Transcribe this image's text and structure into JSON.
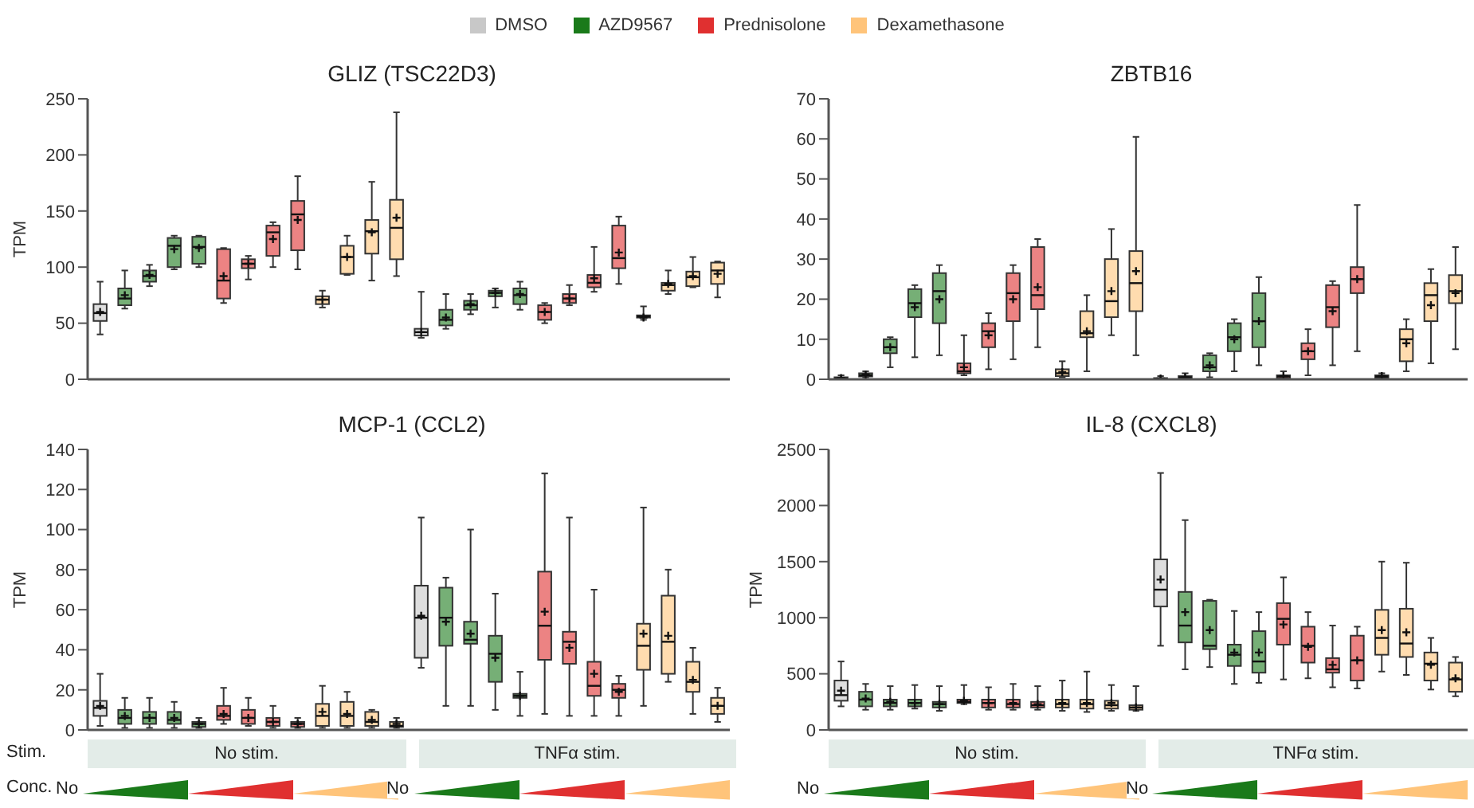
{
  "chart_data": [
    {
      "type": "box",
      "title": "GLIZ (TSC22D3)",
      "ylabel": "TPM",
      "legend": "top",
      "ylim": [
        0,
        250
      ],
      "yticks": [
        0,
        50,
        100,
        150,
        200,
        250
      ],
      "categories": [
        null,
        null,
        null,
        null,
        null,
        null,
        null,
        null,
        null,
        null,
        null,
        null,
        null,
        null,
        null,
        null,
        null,
        null,
        null,
        null,
        null,
        null,
        null,
        null,
        null,
        null
      ],
      "series": [
        {
          "name": "DMSO",
          "color": "#c8c8c8",
          "boxes": [
            {
              "low": 40,
              "q1": 52,
              "median": 59,
              "q3": 67,
              "high": 87,
              "mean": 60
            },
            null,
            null,
            null,
            null,
            null,
            null,
            null,
            null,
            null,
            null,
            null,
            null,
            {
              "low": 37,
              "q1": 39,
              "median": 42,
              "q3": 45,
              "high": 78,
              "mean": 42
            },
            null,
            null,
            null,
            null,
            null,
            null,
            null,
            null,
            null,
            null,
            null,
            null
          ]
        },
        {
          "name": "AZD9567",
          "color": "#1a7a1a",
          "boxes": [
            null,
            {
              "low": 63,
              "q1": 66,
              "median": 72,
              "q3": 81,
              "high": 97,
              "mean": 75
            },
            {
              "low": 83,
              "q1": 87,
              "median": 92,
              "q3": 97,
              "high": 102,
              "mean": 93
            },
            {
              "low": 98,
              "q1": 100,
              "median": 119,
              "q3": 126,
              "high": 128,
              "mean": 116
            },
            {
              "low": 100,
              "q1": 103,
              "median": 118,
              "q3": 127,
              "high": 128,
              "mean": 117
            },
            null,
            null,
            null,
            null,
            null,
            null,
            null,
            null,
            null,
            {
              "low": 45,
              "q1": 48,
              "median": 53,
              "q3": 62,
              "high": 76,
              "mean": 55
            },
            {
              "low": 58,
              "q1": 62,
              "median": 66,
              "q3": 70,
              "high": 76,
              "mean": 67
            },
            {
              "low": 64,
              "q1": 74,
              "median": 77,
              "q3": 79,
              "high": 81,
              "mean": 77
            },
            {
              "low": 62,
              "q1": 67,
              "median": 75,
              "q3": 81,
              "high": 87,
              "mean": 76
            },
            null,
            null,
            null,
            null,
            null,
            null,
            null,
            null
          ]
        },
        {
          "name": "Prednisolone",
          "color": "#e03030",
          "boxes": [
            null,
            null,
            null,
            null,
            null,
            {
              "low": 68,
              "q1": 72,
              "median": 88,
              "q3": 116,
              "high": 117,
              "mean": 92
            },
            {
              "low": 89,
              "q1": 99,
              "median": 103,
              "q3": 107,
              "high": 110,
              "mean": 103
            },
            {
              "low": 100,
              "q1": 110,
              "median": 131,
              "q3": 137,
              "high": 140,
              "mean": 125
            },
            {
              "low": 98,
              "q1": 115,
              "median": 147,
              "q3": 159,
              "high": 181,
              "mean": 142
            },
            null,
            null,
            null,
            null,
            null,
            null,
            null,
            null,
            null,
            {
              "low": 50,
              "q1": 53,
              "median": 60,
              "q3": 66,
              "high": 68,
              "mean": 60
            },
            {
              "low": 66,
              "q1": 68,
              "median": 72,
              "q3": 76,
              "high": 84,
              "mean": 72
            },
            {
              "low": 78,
              "q1": 82,
              "median": 86,
              "q3": 93,
              "high": 118,
              "mean": 90
            },
            {
              "low": 85,
              "q1": 99,
              "median": 108,
              "q3": 137,
              "high": 145,
              "mean": 113
            },
            null,
            null,
            null,
            null
          ]
        },
        {
          "name": "Dexamethasone",
          "color": "#ffc47a",
          "boxes": [
            null,
            null,
            null,
            null,
            null,
            null,
            null,
            null,
            null,
            {
              "low": 64,
              "q1": 67,
              "median": 71,
              "q3": 74,
              "high": 79,
              "mean": 71
            },
            {
              "low": 93,
              "q1": 94,
              "median": 109,
              "q3": 119,
              "high": 128,
              "mean": 109
            },
            {
              "low": 88,
              "q1": 112,
              "median": 132,
              "q3": 142,
              "high": 176,
              "mean": 131
            },
            {
              "low": 92,
              "q1": 107,
              "median": 135,
              "q3": 160,
              "high": 238,
              "mean": 144
            },
            null,
            null,
            null,
            null,
            null,
            null,
            null,
            null,
            null,
            {
              "low": 53,
              "q1": 55,
              "median": 56,
              "q3": 57,
              "high": 65,
              "mean": 55
            },
            {
              "low": 76,
              "q1": 79,
              "median": 84,
              "q3": 86,
              "high": 97,
              "mean": 85
            },
            {
              "low": 82,
              "q1": 83,
              "median": 91,
              "q3": 96,
              "high": 109,
              "mean": 92
            },
            {
              "low": 73,
              "q1": 85,
              "median": 97,
              "q3": 104,
              "high": 105,
              "mean": 94
            }
          ]
        }
      ]
    },
    {
      "type": "box",
      "title": "ZBTB16",
      "ylim": [
        0,
        70
      ],
      "yticks": [
        0,
        10,
        20,
        30,
        40,
        50,
        60,
        70
      ],
      "categories": [
        null,
        null,
        null,
        null,
        null,
        null,
        null,
        null,
        null,
        null,
        null,
        null,
        null,
        null,
        null,
        null,
        null,
        null,
        null,
        null,
        null,
        null,
        null,
        null,
        null,
        null
      ],
      "series": [
        {
          "color": "#c8c8c8",
          "boxes": [
            {
              "low": 0,
              "q1": 0.1,
              "median": 0.2,
              "q3": 0.5,
              "high": 1,
              "mean": 0.3
            },
            null,
            null,
            null,
            null,
            null,
            null,
            null,
            null,
            null,
            null,
            null,
            null,
            {
              "low": 0,
              "q1": 0.05,
              "median": 0.1,
              "q3": 0.3,
              "high": 0.8,
              "mean": 0.2
            },
            null,
            null,
            null,
            null,
            null,
            null,
            null,
            null,
            null,
            null,
            null,
            null
          ]
        },
        {
          "color": "#1a7a1a",
          "boxes": [
            null,
            {
              "low": 0.5,
              "q1": 0.7,
              "median": 1,
              "q3": 1.5,
              "high": 2,
              "mean": 1.2
            },
            {
              "low": 3,
              "q1": 6.5,
              "median": 8,
              "q3": 10,
              "high": 10.5,
              "mean": 8
            },
            {
              "low": 5.5,
              "q1": 15.5,
              "median": 19,
              "q3": 22.5,
              "high": 23.5,
              "mean": 18
            },
            {
              "low": 6,
              "q1": 14,
              "median": 22,
              "q3": 26.5,
              "high": 28.5,
              "mean": 20
            },
            null,
            null,
            null,
            null,
            null,
            null,
            null,
            null,
            null,
            {
              "low": 0,
              "q1": 0.2,
              "median": 0.5,
              "q3": 0.8,
              "high": 1.5,
              "mean": 0.5
            },
            {
              "low": 0.5,
              "q1": 2,
              "median": 3,
              "q3": 6,
              "high": 6.5,
              "mean": 3.5
            },
            {
              "low": 2,
              "q1": 7,
              "median": 10.5,
              "q3": 14,
              "high": 15,
              "mean": 10
            },
            {
              "low": 3.5,
              "q1": 8,
              "median": 14.5,
              "q3": 21.5,
              "high": 25.5,
              "mean": 14.5
            },
            null,
            null,
            null,
            null,
            null,
            null,
            null,
            null
          ]
        },
        {
          "color": "#e03030",
          "boxes": [
            null,
            null,
            null,
            null,
            null,
            {
              "low": 1,
              "q1": 1.5,
              "median": 2,
              "q3": 4,
              "high": 11,
              "mean": 3
            },
            {
              "low": 2.5,
              "q1": 8,
              "median": 12,
              "q3": 14,
              "high": 16.5,
              "mean": 11
            },
            {
              "low": 5,
              "q1": 14.5,
              "median": 21.5,
              "q3": 26.5,
              "high": 28.5,
              "mean": 20
            },
            {
              "low": 8,
              "q1": 17.5,
              "median": 21,
              "q3": 33,
              "high": 35,
              "mean": 23
            },
            null,
            null,
            null,
            null,
            null,
            null,
            null,
            null,
            null,
            {
              "low": 0,
              "q1": 0.3,
              "median": 0.7,
              "q3": 1,
              "high": 2,
              "mean": 0.8
            },
            {
              "low": 1,
              "q1": 5,
              "median": 7,
              "q3": 9,
              "high": 12.5,
              "mean": 7
            },
            {
              "low": 3.5,
              "q1": 13,
              "median": 18,
              "q3": 23.5,
              "high": 24.5,
              "mean": 17
            },
            {
              "low": 7,
              "q1": 21.5,
              "median": 25,
              "q3": 28,
              "high": 43.5,
              "mean": 25
            },
            null,
            null,
            null,
            null
          ]
        },
        {
          "color": "#ffc47a",
          "boxes": [
            null,
            null,
            null,
            null,
            null,
            null,
            null,
            null,
            null,
            {
              "low": 0.5,
              "q1": 0.8,
              "median": 1.5,
              "q3": 2.5,
              "high": 4.5,
              "mean": 1.8
            },
            {
              "low": 2,
              "q1": 10.5,
              "median": 11.5,
              "q3": 17,
              "high": 21,
              "mean": 12
            },
            {
              "low": 11,
              "q1": 15.5,
              "median": 19.5,
              "q3": 30,
              "high": 37.5,
              "mean": 22
            },
            {
              "low": 6,
              "q1": 17,
              "median": 24,
              "q3": 32,
              "high": 60.5,
              "mean": 27
            },
            null,
            null,
            null,
            null,
            null,
            null,
            null,
            null,
            null,
            {
              "low": 0.2,
              "q1": 0.4,
              "median": 0.7,
              "q3": 1,
              "high": 1.5,
              "mean": 0.8
            },
            {
              "low": 2,
              "q1": 4.5,
              "median": 10,
              "q3": 12.5,
              "high": 15,
              "mean": 9
            },
            {
              "low": 4,
              "q1": 14.5,
              "median": 21,
              "q3": 24,
              "high": 27.5,
              "mean": 18.5
            },
            {
              "low": 7.5,
              "q1": 19,
              "median": 22,
              "q3": 26,
              "high": 33,
              "mean": 21.5
            }
          ]
        }
      ]
    },
    {
      "type": "box",
      "title": "MCP-1 (CCL2)",
      "ylabel": "TPM",
      "ylim": [
        0,
        140
      ],
      "yticks": [
        0,
        20,
        40,
        60,
        80,
        100,
        120,
        140
      ],
      "annotations": [
        "Stim.",
        "No stim.",
        "TNFα stim.",
        "Conc.",
        "No",
        "No"
      ],
      "categories": [
        null,
        null,
        null,
        null,
        null,
        null,
        null,
        null,
        null,
        null,
        null,
        null,
        null,
        null,
        null,
        null,
        null,
        null,
        null,
        null,
        null,
        null,
        null,
        null,
        null,
        null
      ],
      "series": [
        {
          "color": "#c8c8c8",
          "boxes": [
            {
              "low": 2,
              "q1": 7,
              "median": 11,
              "q3": 14.5,
              "high": 28,
              "mean": 12
            },
            null,
            null,
            null,
            null,
            null,
            null,
            null,
            null,
            null,
            null,
            null,
            null,
            {
              "low": 31,
              "q1": 36,
              "median": 56,
              "q3": 72,
              "high": 106,
              "mean": 57
            },
            null,
            null,
            null,
            null,
            null,
            null,
            null,
            null,
            null,
            null,
            null,
            null
          ]
        },
        {
          "color": "#1a7a1a",
          "boxes": [
            null,
            {
              "low": 1,
              "q1": 3,
              "median": 6,
              "q3": 10,
              "high": 16,
              "mean": 7
            },
            {
              "low": 1,
              "q1": 3,
              "median": 6,
              "q3": 9,
              "high": 16,
              "mean": 6
            },
            {
              "low": 1,
              "q1": 3,
              "median": 5,
              "q3": 9,
              "high": 14,
              "mean": 6
            },
            {
              "low": 1,
              "q1": 1.5,
              "median": 3,
              "q3": 4,
              "high": 6,
              "mean": 3
            },
            null,
            null,
            null,
            null,
            null,
            null,
            null,
            null,
            null,
            {
              "low": 12,
              "q1": 42,
              "median": 56,
              "q3": 71,
              "high": 76,
              "mean": 54
            },
            {
              "low": 12,
              "q1": 43,
              "median": 45,
              "q3": 54,
              "high": 100,
              "mean": 48
            },
            {
              "low": 10,
              "q1": 24,
              "median": 38,
              "q3": 47,
              "high": 68,
              "mean": 36
            },
            {
              "low": 7,
              "q1": 16,
              "median": 17,
              "q3": 18,
              "high": 29,
              "mean": 17
            },
            null,
            null,
            null,
            null,
            null,
            null,
            null,
            null
          ]
        },
        {
          "color": "#e03030",
          "boxes": [
            null,
            null,
            null,
            null,
            null,
            {
              "low": 3,
              "q1": 5,
              "median": 7,
              "q3": 12,
              "high": 21,
              "mean": 8
            },
            {
              "low": 2,
              "q1": 3,
              "median": 6,
              "q3": 10,
              "high": 16,
              "mean": 6
            },
            {
              "low": 1,
              "q1": 2,
              "median": 4,
              "q3": 6,
              "high": 12,
              "mean": 4
            },
            {
              "low": 1,
              "q1": 1.5,
              "median": 3,
              "q3": 4,
              "high": 6,
              "mean": 3
            },
            null,
            null,
            null,
            null,
            null,
            null,
            null,
            null,
            null,
            {
              "low": 8,
              "q1": 35,
              "median": 52,
              "q3": 79,
              "high": 128,
              "mean": 59
            },
            {
              "low": 7,
              "q1": 33,
              "median": 44,
              "q3": 49,
              "high": 106,
              "mean": 41
            },
            {
              "low": 7,
              "q1": 17,
              "median": 22,
              "q3": 34,
              "high": 70,
              "mean": 28
            },
            {
              "low": 7,
              "q1": 16,
              "median": 20,
              "q3": 23,
              "high": 27,
              "mean": 19
            },
            null,
            null,
            null,
            null
          ]
        },
        {
          "color": "#ffc47a",
          "boxes": [
            null,
            null,
            null,
            null,
            null,
            null,
            null,
            null,
            null,
            {
              "low": 1,
              "q1": 2,
              "median": 7,
              "q3": 13,
              "high": 22,
              "mean": 9
            },
            {
              "low": 1,
              "q1": 2,
              "median": 7,
              "q3": 14,
              "high": 19,
              "mean": 8
            },
            {
              "low": 1,
              "q1": 2,
              "median": 4,
              "q3": 9,
              "high": 10,
              "mean": 5
            },
            {
              "low": 1,
              "q1": 1.5,
              "median": 2,
              "q3": 4,
              "high": 6,
              "mean": 3
            },
            null,
            null,
            null,
            null,
            null,
            null,
            null,
            null,
            null,
            {
              "low": 12,
              "q1": 30,
              "median": 42,
              "q3": 53,
              "high": 111,
              "mean": 48
            },
            {
              "low": 24,
              "q1": 28,
              "median": 44,
              "q3": 67,
              "high": 80,
              "mean": 47
            },
            {
              "low": 8,
              "q1": 19,
              "median": 24,
              "q3": 34,
              "high": 41,
              "mean": 25
            },
            {
              "low": 4,
              "q1": 8,
              "median": 12,
              "q3": 16,
              "high": 21,
              "mean": 12
            }
          ]
        }
      ]
    },
    {
      "type": "box",
      "title": "IL-8 (CXCL8)",
      "ylabel": "TPM",
      "ylim": [
        0,
        2500
      ],
      "yticks": [
        0,
        500,
        1000,
        1500,
        2000,
        2500
      ],
      "annotations": [
        "No stim.",
        "TNFα stim.",
        "No",
        "No"
      ],
      "categories": [
        null,
        null,
        null,
        null,
        null,
        null,
        null,
        null,
        null,
        null,
        null,
        null,
        null,
        null,
        null,
        null,
        null,
        null,
        null,
        null,
        null,
        null,
        null,
        null,
        null,
        null
      ],
      "series": [
        {
          "color": "#c8c8c8",
          "boxes": [
            {
              "low": 210,
              "q1": 260,
              "median": 310,
              "q3": 440,
              "high": 610,
              "mean": 350
            },
            null,
            null,
            null,
            null,
            null,
            null,
            null,
            null,
            null,
            null,
            null,
            null,
            {
              "low": 750,
              "q1": 1100,
              "median": 1250,
              "q3": 1520,
              "high": 2290,
              "mean": 1340
            },
            null,
            null,
            null,
            null,
            null,
            null,
            null,
            null,
            null,
            null,
            null,
            null
          ]
        },
        {
          "color": "#1a7a1a",
          "boxes": [
            null,
            {
              "low": 180,
              "q1": 210,
              "median": 270,
              "q3": 340,
              "high": 410,
              "mean": 280
            },
            {
              "low": 180,
              "q1": 210,
              "median": 240,
              "q3": 270,
              "high": 390,
              "mean": 250
            },
            {
              "low": 190,
              "q1": 210,
              "median": 240,
              "q3": 270,
              "high": 400,
              "mean": 240
            },
            {
              "low": 170,
              "q1": 200,
              "median": 230,
              "q3": 250,
              "high": 390,
              "mean": 230
            },
            null,
            null,
            null,
            null,
            null,
            null,
            null,
            null,
            null,
            {
              "low": 540,
              "q1": 780,
              "median": 930,
              "q3": 1230,
              "high": 1870,
              "mean": 1050
            },
            {
              "low": 560,
              "q1": 720,
              "median": 750,
              "q3": 1150,
              "high": 1160,
              "mean": 890
            },
            {
              "low": 410,
              "q1": 570,
              "median": 670,
              "q3": 760,
              "high": 1060,
              "mean": 690
            },
            {
              "low": 420,
              "q1": 510,
              "median": 610,
              "q3": 880,
              "high": 1050,
              "mean": 690
            },
            null,
            null,
            null,
            null,
            null,
            null,
            null,
            null
          ]
        },
        {
          "color": "#e03030",
          "boxes": [
            null,
            null,
            null,
            null,
            null,
            {
              "low": 230,
              "q1": 240,
              "median": 250,
              "q3": 270,
              "high": 400,
              "mean": 260
            },
            {
              "low": 180,
              "q1": 200,
              "median": 240,
              "q3": 270,
              "high": 380,
              "mean": 240
            },
            {
              "low": 180,
              "q1": 200,
              "median": 230,
              "q3": 270,
              "high": 410,
              "mean": 240
            },
            {
              "low": 180,
              "q1": 200,
              "median": 220,
              "q3": 250,
              "high": 390,
              "mean": 230
            },
            null,
            null,
            null,
            null,
            null,
            null,
            null,
            null,
            null,
            {
              "low": 450,
              "q1": 760,
              "median": 990,
              "q3": 1130,
              "high": 1360,
              "mean": 940
            },
            {
              "low": 460,
              "q1": 600,
              "median": 750,
              "q3": 920,
              "high": 1050,
              "mean": 740
            },
            {
              "low": 380,
              "q1": 510,
              "median": 540,
              "q3": 640,
              "high": 930,
              "mean": 580
            },
            {
              "low": 370,
              "q1": 440,
              "median": 620,
              "q3": 840,
              "high": 920,
              "mean": 620
            },
            null,
            null,
            null,
            null
          ]
        },
        {
          "color": "#ffc47a",
          "boxes": [
            null,
            null,
            null,
            null,
            null,
            null,
            null,
            null,
            null,
            {
              "low": 170,
              "q1": 200,
              "median": 230,
              "q3": 270,
              "high": 440,
              "mean": 240
            },
            {
              "low": 160,
              "q1": 190,
              "median": 230,
              "q3": 270,
              "high": 520,
              "mean": 240
            },
            {
              "low": 170,
              "q1": 190,
              "median": 220,
              "q3": 260,
              "high": 400,
              "mean": 240
            },
            {
              "low": 170,
              "q1": 180,
              "median": 200,
              "q3": 220,
              "high": 390,
              "mean": 200
            },
            null,
            null,
            null,
            null,
            null,
            null,
            null,
            null,
            null,
            {
              "low": 520,
              "q1": 670,
              "median": 820,
              "q3": 1070,
              "high": 1500,
              "mean": 890
            },
            {
              "low": 490,
              "q1": 650,
              "median": 770,
              "q3": 1080,
              "high": 1490,
              "mean": 870
            },
            {
              "low": 360,
              "q1": 440,
              "median": 590,
              "q3": 690,
              "high": 820,
              "mean": 580
            },
            {
              "low": 300,
              "q1": 340,
              "median": 450,
              "q3": 600,
              "high": 650,
              "mean": 460
            }
          ]
        }
      ]
    }
  ]
}
